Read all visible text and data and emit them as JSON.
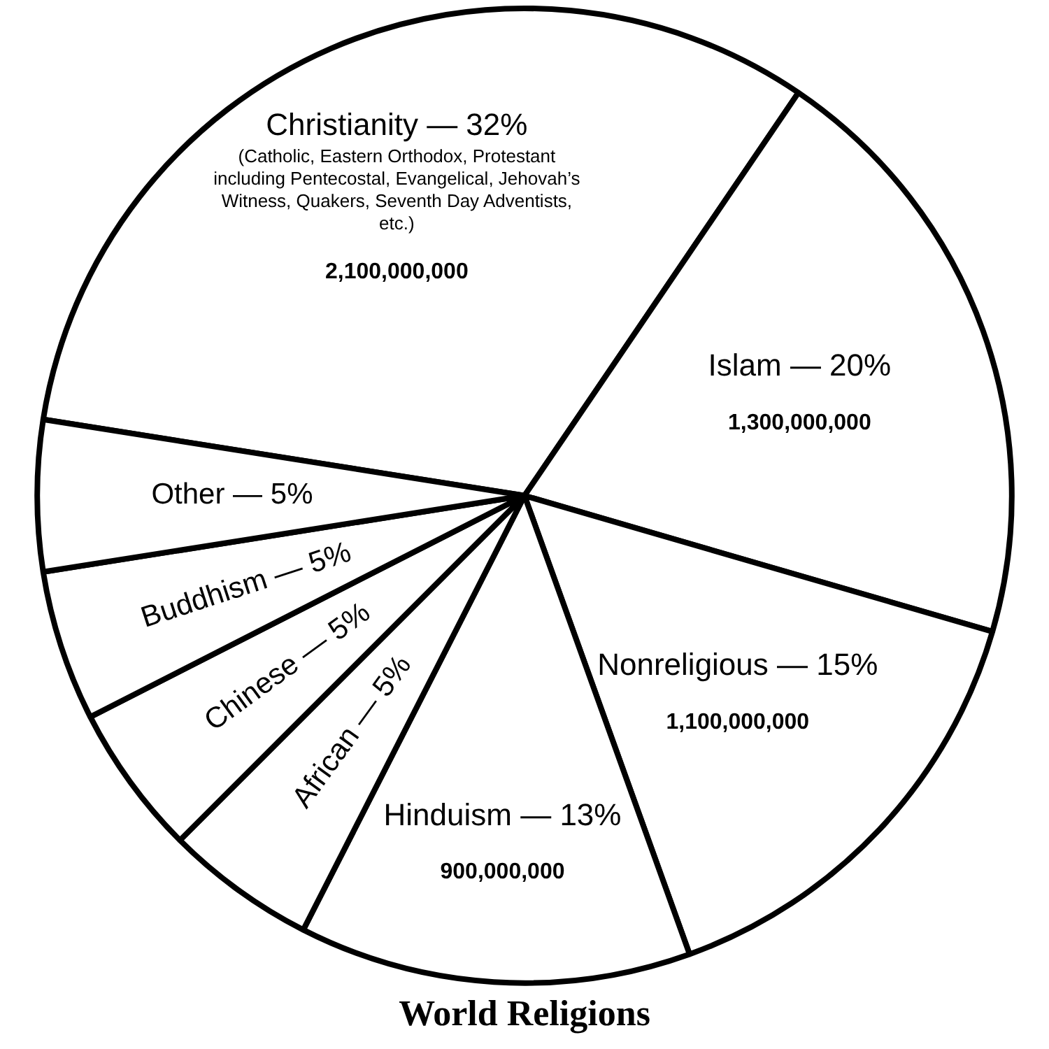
{
  "chart_data": {
    "type": "pie",
    "title": "World Religions",
    "categories": [
      "Christianity — 32%",
      "Islam — 20%",
      "Nonreligious — 15%",
      "Hinduism — 13%",
      "African — 5%",
      "Chinese — 5%",
      "Buddhism — 5%",
      "Other — 5%"
    ],
    "values": [
      32,
      20,
      15,
      13,
      5,
      5,
      5,
      5
    ],
    "colors": [
      "#ffffff",
      "#ffffff",
      "#ffffff",
      "#ffffff",
      "#ffffff",
      "#ffffff",
      "#ffffff",
      "#ffffff"
    ],
    "annotations": [
      {
        "text": "(Catholic, Eastern Orthodox, Protestant including Pentecostal, Evangelical, Jehovah’s Witness, Quakers, Seventh Day Adventists, etc.)",
        "x": "Christianity — 32%"
      },
      {
        "text": "2,100,000,000",
        "x": "Christianity — 32%"
      },
      {
        "text": "1,300,000,000",
        "x": "Islam — 20%"
      },
      {
        "text": "1,100,000,000",
        "x": "Nonreligious — 15%"
      },
      {
        "text": "900,000,000",
        "x": "Hinduism — 13%"
      }
    ],
    "legend": false
  }
}
